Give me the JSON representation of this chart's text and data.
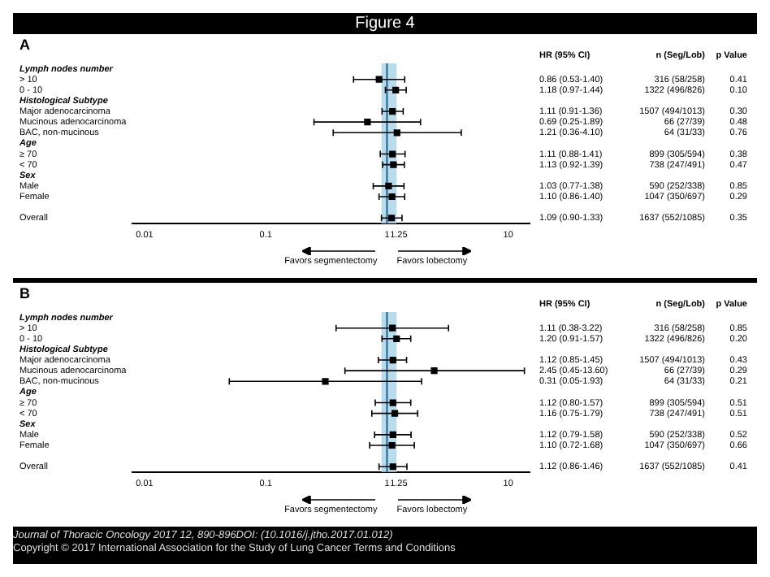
{
  "chart_data": [
    {
      "type": "scatter",
      "title": "Figure 4",
      "subtitle": "A",
      "orientation": "horizontal",
      "log": "x",
      "marker": "square",
      "grid": false,
      "legend": false,
      "categories": [
        "Lymph nodes number",
        "> 10",
        "0 - 10",
        "Histological Subtype",
        "Major adenocarcinoma",
        "Mucinous adenocarcinoma",
        "BAC, non-mucinous",
        "Age",
        "≥ 70",
        "< 70",
        "Sex",
        "Male",
        "Female",
        null,
        "Overall"
      ],
      "xlim": [
        0.008,
        15
      ],
      "xticks": [
        0.01,
        0.1,
        1,
        1.25,
        10
      ],
      "series": [
        {
          "color": "#000000",
          "values": [
            null,
            0.86,
            1.18,
            null,
            1.11,
            0.69,
            1.21,
            null,
            1.11,
            1.13,
            null,
            1.03,
            1.1,
            null,
            1.09
          ],
          "errors": [
            null,
            [
              0.53,
              1.4
            ],
            [
              0.97,
              1.44
            ],
            null,
            [
              0.91,
              1.36
            ],
            [
              0.25,
              1.89
            ],
            [
              0.36,
              4.1
            ],
            null,
            [
              0.88,
              1.41
            ],
            [
              0.92,
              1.39
            ],
            null,
            [
              0.77,
              1.38
            ],
            [
              0.86,
              1.4
            ],
            null,
            [
              0.9,
              1.33
            ]
          ]
        }
      ],
      "bands": [
        {
          "axis": "x",
          "from": 0.9,
          "to": 1.2,
          "color": "#b9dcec"
        }
      ],
      "ref_lines": [
        {
          "axis": "x",
          "value": 1,
          "color": "#1f5f8b"
        }
      ],
      "annotations": [
        "HR (95% CI)",
        "n (Seg/Lob)",
        "p Value",
        "Favors segmentectomy",
        "Favors lobectomy",
        "0.86 (0.53-1.40)",
        "316 (58/258)",
        "0.41",
        "1.18 (0.97-1.44)",
        "1322 (496/826)",
        "0.10",
        "1.11 (0.91-1.36)",
        "1507 (494/1013)",
        "0.30",
        "0.69 (0.25-1.89)",
        "66 (27/39)",
        "0.48",
        "1.21 (0.36-4.10)",
        "64 (31/33)",
        "0.76",
        "1.11 (0.88-1.41)",
        "899 (305/594)",
        "0.38",
        "1.13 (0.92-1.39)",
        "738 (247/491)",
        "0.47",
        "1.03 (0.77-1.38)",
        "590 (252/338)",
        "0.85",
        "1.10 (0.86-1.40)",
        "1047 (350/697)",
        "0.29",
        "1.09 (0.90-1.33)",
        "1637 (552/1085)",
        "0.35"
      ]
    },
    {
      "type": "scatter",
      "subtitle": "B",
      "orientation": "horizontal",
      "log": "x",
      "marker": "square",
      "grid": false,
      "legend": false,
      "categories": [
        "Lymph nodes number",
        "> 10",
        "0 - 10",
        "Histological Subtype",
        "Major adenocarcinoma",
        "Mucinous adenocarcinoma",
        "BAC, non-mucinous",
        "Age",
        "≥ 70",
        "< 70",
        "Sex",
        "Male",
        "Female",
        null,
        "Overall"
      ],
      "xlim": [
        0.008,
        15
      ],
      "xticks": [
        0.01,
        0.1,
        1,
        1.25,
        10
      ],
      "series": [
        {
          "color": "#000000",
          "values": [
            null,
            1.11,
            1.2,
            null,
            1.12,
            2.45,
            0.31,
            null,
            1.12,
            1.16,
            null,
            1.12,
            1.1,
            null,
            1.12
          ],
          "errors": [
            null,
            [
              0.38,
              3.22
            ],
            [
              0.91,
              1.57
            ],
            null,
            [
              0.85,
              1.45
            ],
            [
              0.45,
              13.6
            ],
            [
              0.05,
              1.93
            ],
            null,
            [
              0.8,
              1.57
            ],
            [
              0.75,
              1.79
            ],
            null,
            [
              0.79,
              1.58
            ],
            [
              0.72,
              1.68
            ],
            null,
            [
              0.86,
              1.46
            ]
          ]
        }
      ],
      "bands": [
        {
          "axis": "x",
          "from": 0.9,
          "to": 1.2,
          "color": "#b9dcec"
        }
      ],
      "ref_lines": [
        {
          "axis": "x",
          "value": 1,
          "color": "#1f5f8b"
        }
      ],
      "annotations": [
        "HR (95% CI)",
        "n (Seg/Lob)",
        "p Value",
        "Favors segmentectomy",
        "Favors lobectomy",
        "1.11 (0.38-3.22)",
        "316 (58/258)",
        "0.85",
        "1.20 (0.91-1.57)",
        "1322 (496/826)",
        "0.20",
        "1.12 (0.85-1.45)",
        "1507 (494/1013)",
        "0.43",
        "2.45 (0.45-13.60)",
        "66 (27/39)",
        "0.29",
        "0.31 (0.05-1.93)",
        "64 (31/33)",
        "0.21",
        "1.12 (0.80-1.57)",
        "899 (305/594)",
        "0.51",
        "1.16 (0.75-1.79)",
        "738 (247/491)",
        "0.51",
        "1.12 (0.79-1.58)",
        "590 (252/338)",
        "0.52",
        "1.10 (0.72-1.68)",
        "1047 (350/697)",
        "0.66",
        "1.12 (0.86-1.46)",
        "1637 (552/1085)",
        "0.41",
        "Journal of Thoracic Oncology 2017 12, 890-896DOI: (10.1016/j.jtho.2017.01.012)",
        "Copyright © 2017 International Association for the Study of Lung Cancer Terms and Conditions"
      ]
    }
  ]
}
